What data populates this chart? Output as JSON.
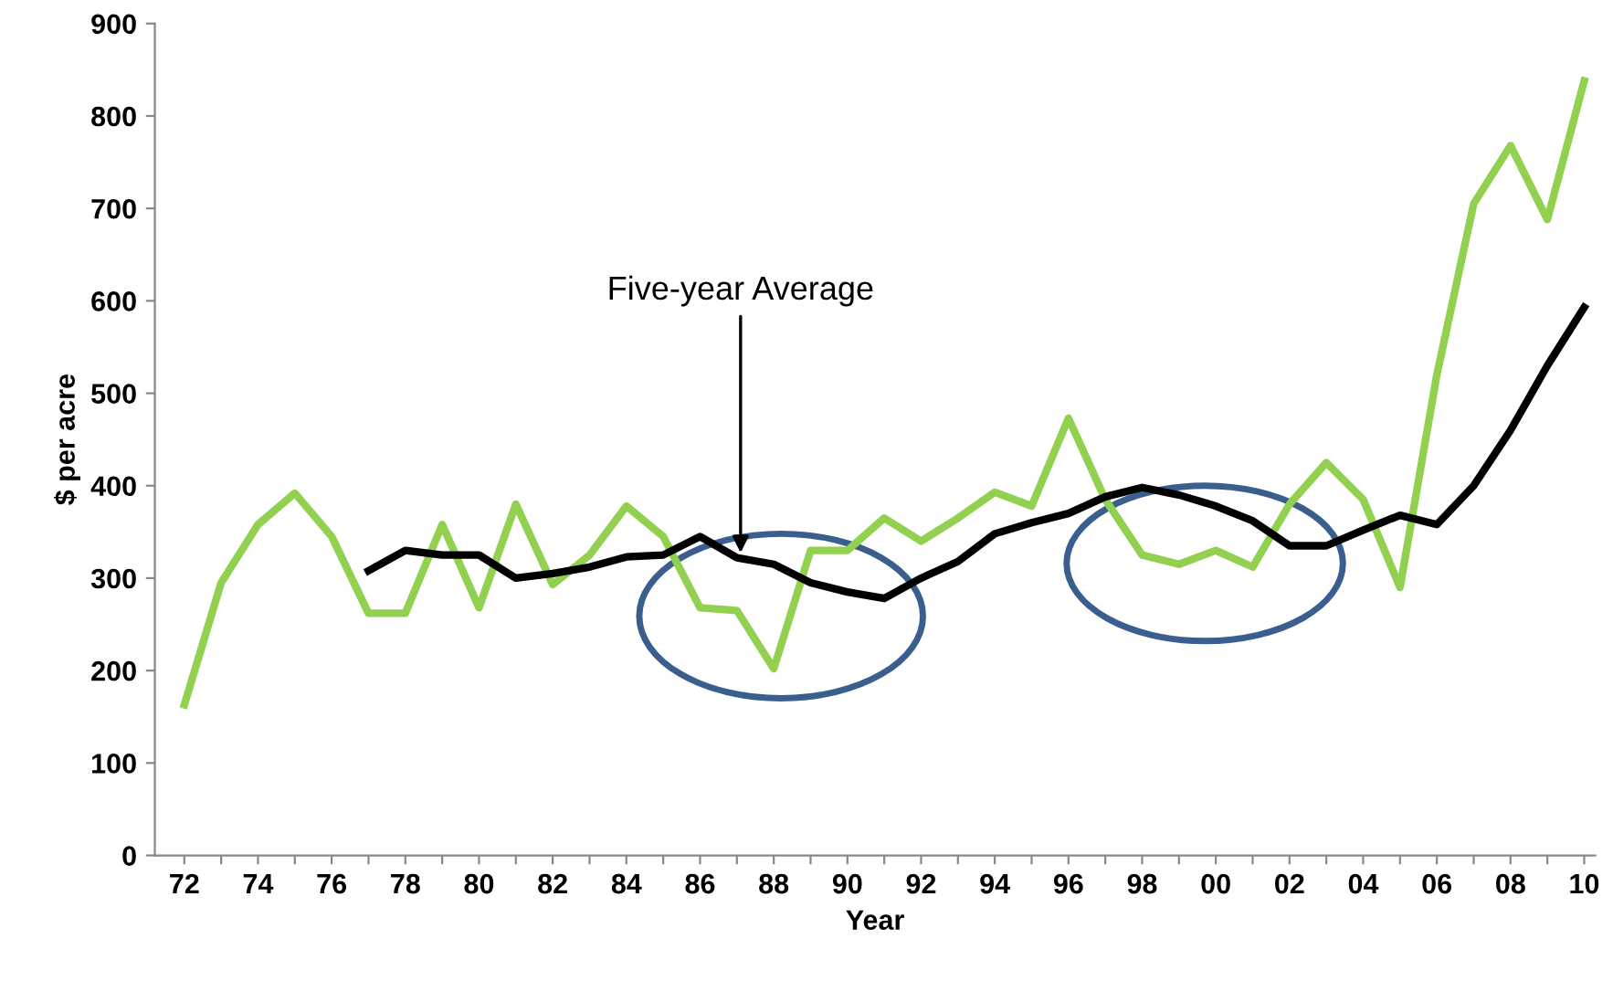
{
  "chart_data": {
    "type": "line",
    "xlabel": "Year",
    "ylabel": "$ per acre",
    "categories": [
      "72",
      null,
      "74",
      null,
      "76",
      null,
      "78",
      null,
      "80",
      null,
      "82",
      null,
      "84",
      null,
      "86",
      null,
      "88",
      null,
      "90",
      null,
      "92",
      null,
      "94",
      null,
      "96",
      null,
      "98",
      null,
      "00",
      null,
      "02",
      null,
      "04",
      null,
      "06",
      null,
      "08",
      null,
      "10"
    ],
    "series": [
      {
        "color": "#92d050",
        "values": [
          163,
          295,
          358,
          392,
          345,
          262,
          262,
          358,
          268,
          380,
          293,
          325,
          378,
          345,
          268,
          265,
          202,
          330,
          330,
          365,
          340,
          365,
          393,
          378,
          473,
          385,
          325,
          315,
          330,
          312,
          380,
          425,
          385,
          290,
          520,
          705,
          768,
          688,
          838
        ]
      },
      {
        "color": "#000000",
        "values": [
          null,
          null,
          null,
          null,
          null,
          308,
          330,
          325,
          325,
          300,
          305,
          312,
          323,
          325,
          345,
          322,
          315,
          295,
          285,
          278,
          300,
          318,
          348,
          360,
          370,
          388,
          398,
          390,
          378,
          362,
          335,
          335,
          352,
          368,
          358,
          400,
          460,
          530,
          593
        ]
      }
    ],
    "ylim": [
      0,
      900
    ],
    "yticks": [
      0,
      100,
      200,
      300,
      400,
      500,
      600,
      700,
      800,
      900
    ],
    "grid": false,
    "legend": false,
    "marker": "none",
    "line_style": "solid",
    "annotations": [
      {
        "text": "Five-year Average",
        "y": 322
      }
    ]
  }
}
